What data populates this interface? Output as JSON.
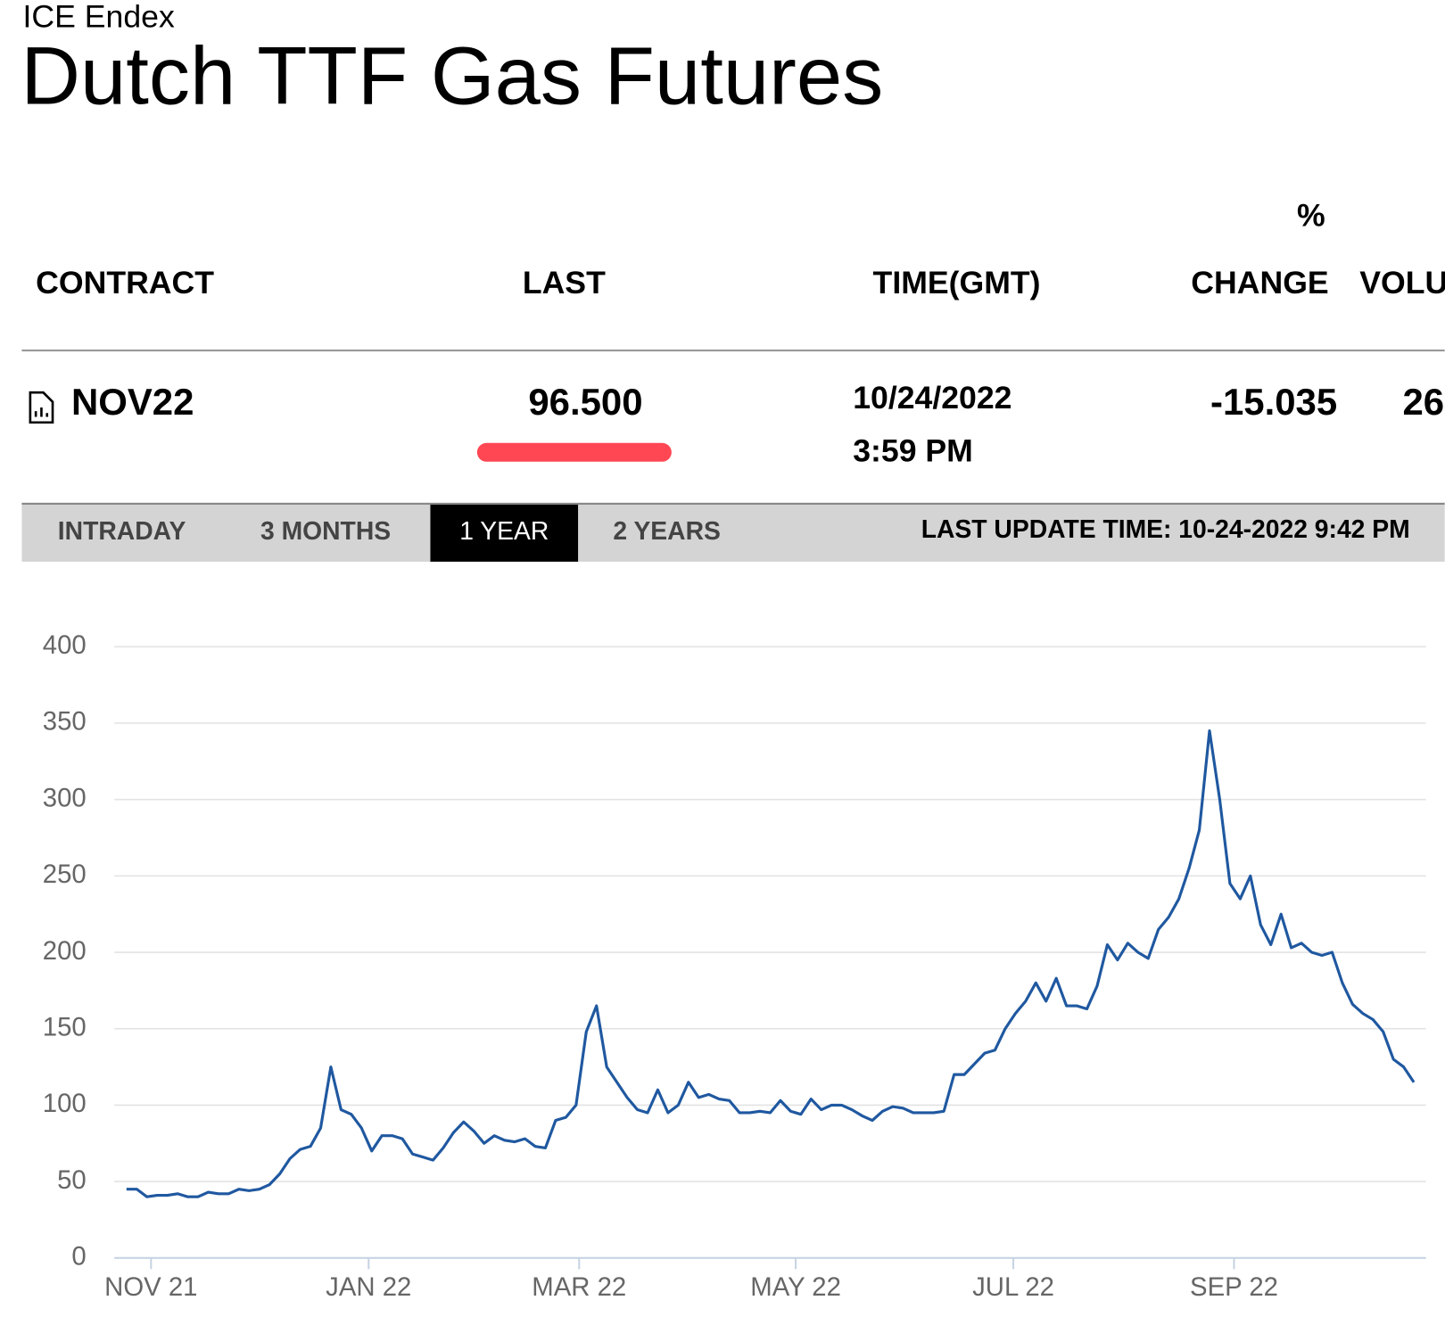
{
  "header": {
    "exchange": "ICE Endex",
    "title": "Dutch TTF Gas Futures"
  },
  "table": {
    "columns": [
      "CONTRACT",
      "LAST",
      "TIME(GMT)",
      "%",
      "CHANGE",
      "VOLU"
    ],
    "row": {
      "contract": "NOV22",
      "last": "96.500",
      "date": "10/24/2022",
      "time": "3:59 PM",
      "change": "-15.035",
      "volume": "26"
    }
  },
  "tabs": {
    "items": [
      "INTRADAY",
      "3 MONTHS",
      "1 YEAR",
      "2 YEARS"
    ],
    "active": "1 YEAR",
    "update": "LAST UPDATE TIME: 10-24-2022 9:42 PM"
  },
  "chart_data": {
    "type": "line",
    "color": "#1f58a0",
    "grid": true,
    "xlim": [
      0,
      126
    ],
    "xticks": [
      {
        "value": 2.4,
        "label": "NOV 21"
      },
      {
        "value": 23.7,
        "label": "JAN 22"
      },
      {
        "value": 44.3,
        "label": "MAR 22"
      },
      {
        "value": 65.5,
        "label": "MAY 22"
      },
      {
        "value": 86.8,
        "label": "JUL 22"
      },
      {
        "value": 108.4,
        "label": "SEP 22"
      }
    ],
    "ylim": [
      0,
      400
    ],
    "yticks": [
      0,
      50,
      100,
      150,
      200,
      250,
      300,
      350,
      400
    ],
    "values": [
      45,
      45,
      40,
      41,
      41,
      42,
      40,
      40,
      43,
      42,
      42,
      45,
      44,
      45,
      48,
      55,
      65,
      71,
      73,
      85,
      125,
      97,
      94,
      85,
      70,
      80,
      80,
      78,
      68,
      66,
      64,
      72,
      82,
      89,
      83,
      75,
      80,
      77,
      76,
      78,
      73,
      72,
      90,
      92,
      100,
      148,
      165,
      125,
      115,
      105,
      97,
      95,
      110,
      95,
      100,
      115,
      105,
      107,
      104,
      103,
      95,
      95,
      96,
      95,
      103,
      96,
      94,
      104,
      97,
      100,
      100,
      97,
      93,
      90,
      96,
      99,
      98,
      95,
      95,
      95,
      96,
      120,
      120,
      127,
      134,
      136,
      150,
      160,
      168,
      180,
      168,
      183,
      165,
      165,
      163,
      178,
      205,
      195,
      206,
      200,
      196,
      215,
      223,
      235,
      255,
      280,
      345,
      300,
      245,
      235,
      250,
      218,
      205,
      225,
      203,
      206,
      200,
      198,
      200,
      180,
      166,
      160,
      156,
      148,
      130,
      125,
      115
    ]
  }
}
